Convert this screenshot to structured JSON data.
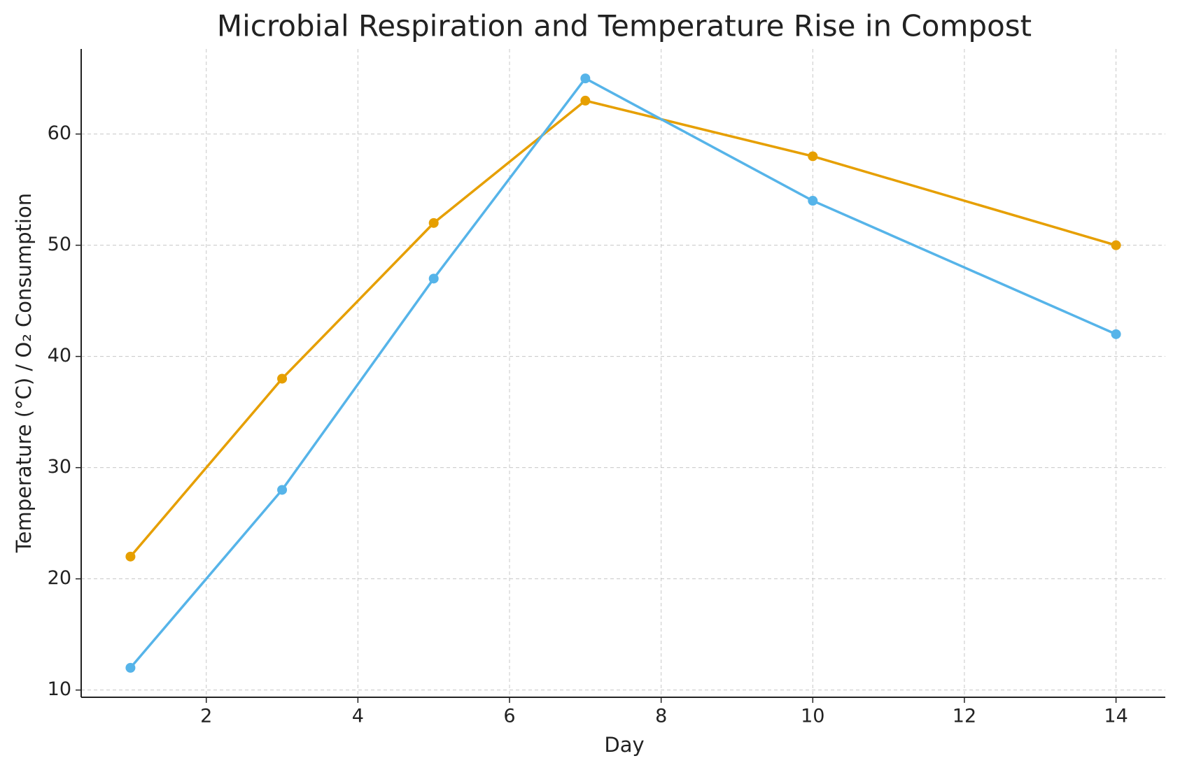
{
  "chart_data": {
    "type": "line",
    "title": "Microbial Respiration and Temperature Rise in Compost",
    "x_label": "Day",
    "y_label": "Temperature (°C) / O₂ Consumption",
    "x": [
      1,
      3,
      5,
      7,
      10,
      14
    ],
    "series": [
      {
        "color": "#E69F00",
        "values": [
          22,
          38,
          52,
          63,
          58,
          50
        ]
      },
      {
        "color": "#56B4E9",
        "values": [
          12,
          28,
          47,
          65,
          54,
          42
        ]
      }
    ],
    "xlim": [
      0.35,
      14.65
    ],
    "xticks": [
      2,
      4,
      6,
      8,
      10,
      12,
      14
    ],
    "ylim": [
      9.35,
      67.65
    ],
    "yticks": [
      10,
      20,
      30,
      40,
      50,
      60
    ],
    "grid": true
  }
}
